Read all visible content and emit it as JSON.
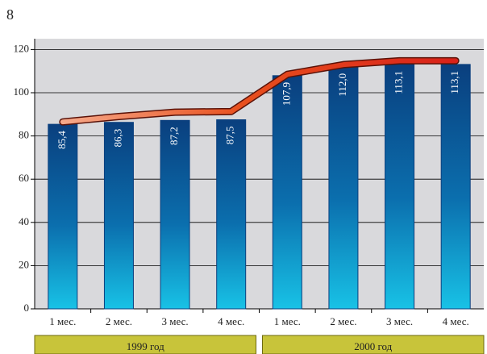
{
  "page_number": "8",
  "chart_data": {
    "type": "bar",
    "categories": [
      "1 мес.",
      "2 мес.",
      "3 мес.",
      "4 мес.",
      "1 мес.",
      "2 мес.",
      "3 мес.",
      "4 мес."
    ],
    "groups": [
      "1999 год",
      "2000 год"
    ],
    "series": [
      {
        "type": "bar",
        "color": "#0a3f7e",
        "values": [
          85.4,
          86.3,
          87.2,
          87.5,
          107.9,
          112.0,
          113.1,
          113.1
        ],
        "value_labels": [
          "85,4",
          "86,3",
          "87,2",
          "87,5",
          "107,9",
          "112,0",
          "113,1",
          "113,1"
        ]
      },
      {
        "type": "line",
        "color": "#d8281a",
        "values": [
          86.5,
          89,
          91,
          91.3,
          108.5,
          113,
          114.8,
          114.8
        ]
      }
    ],
    "ylim": [
      0,
      125
    ],
    "yticks": [
      0,
      20,
      40,
      60,
      80,
      100,
      120
    ],
    "grid": true
  }
}
